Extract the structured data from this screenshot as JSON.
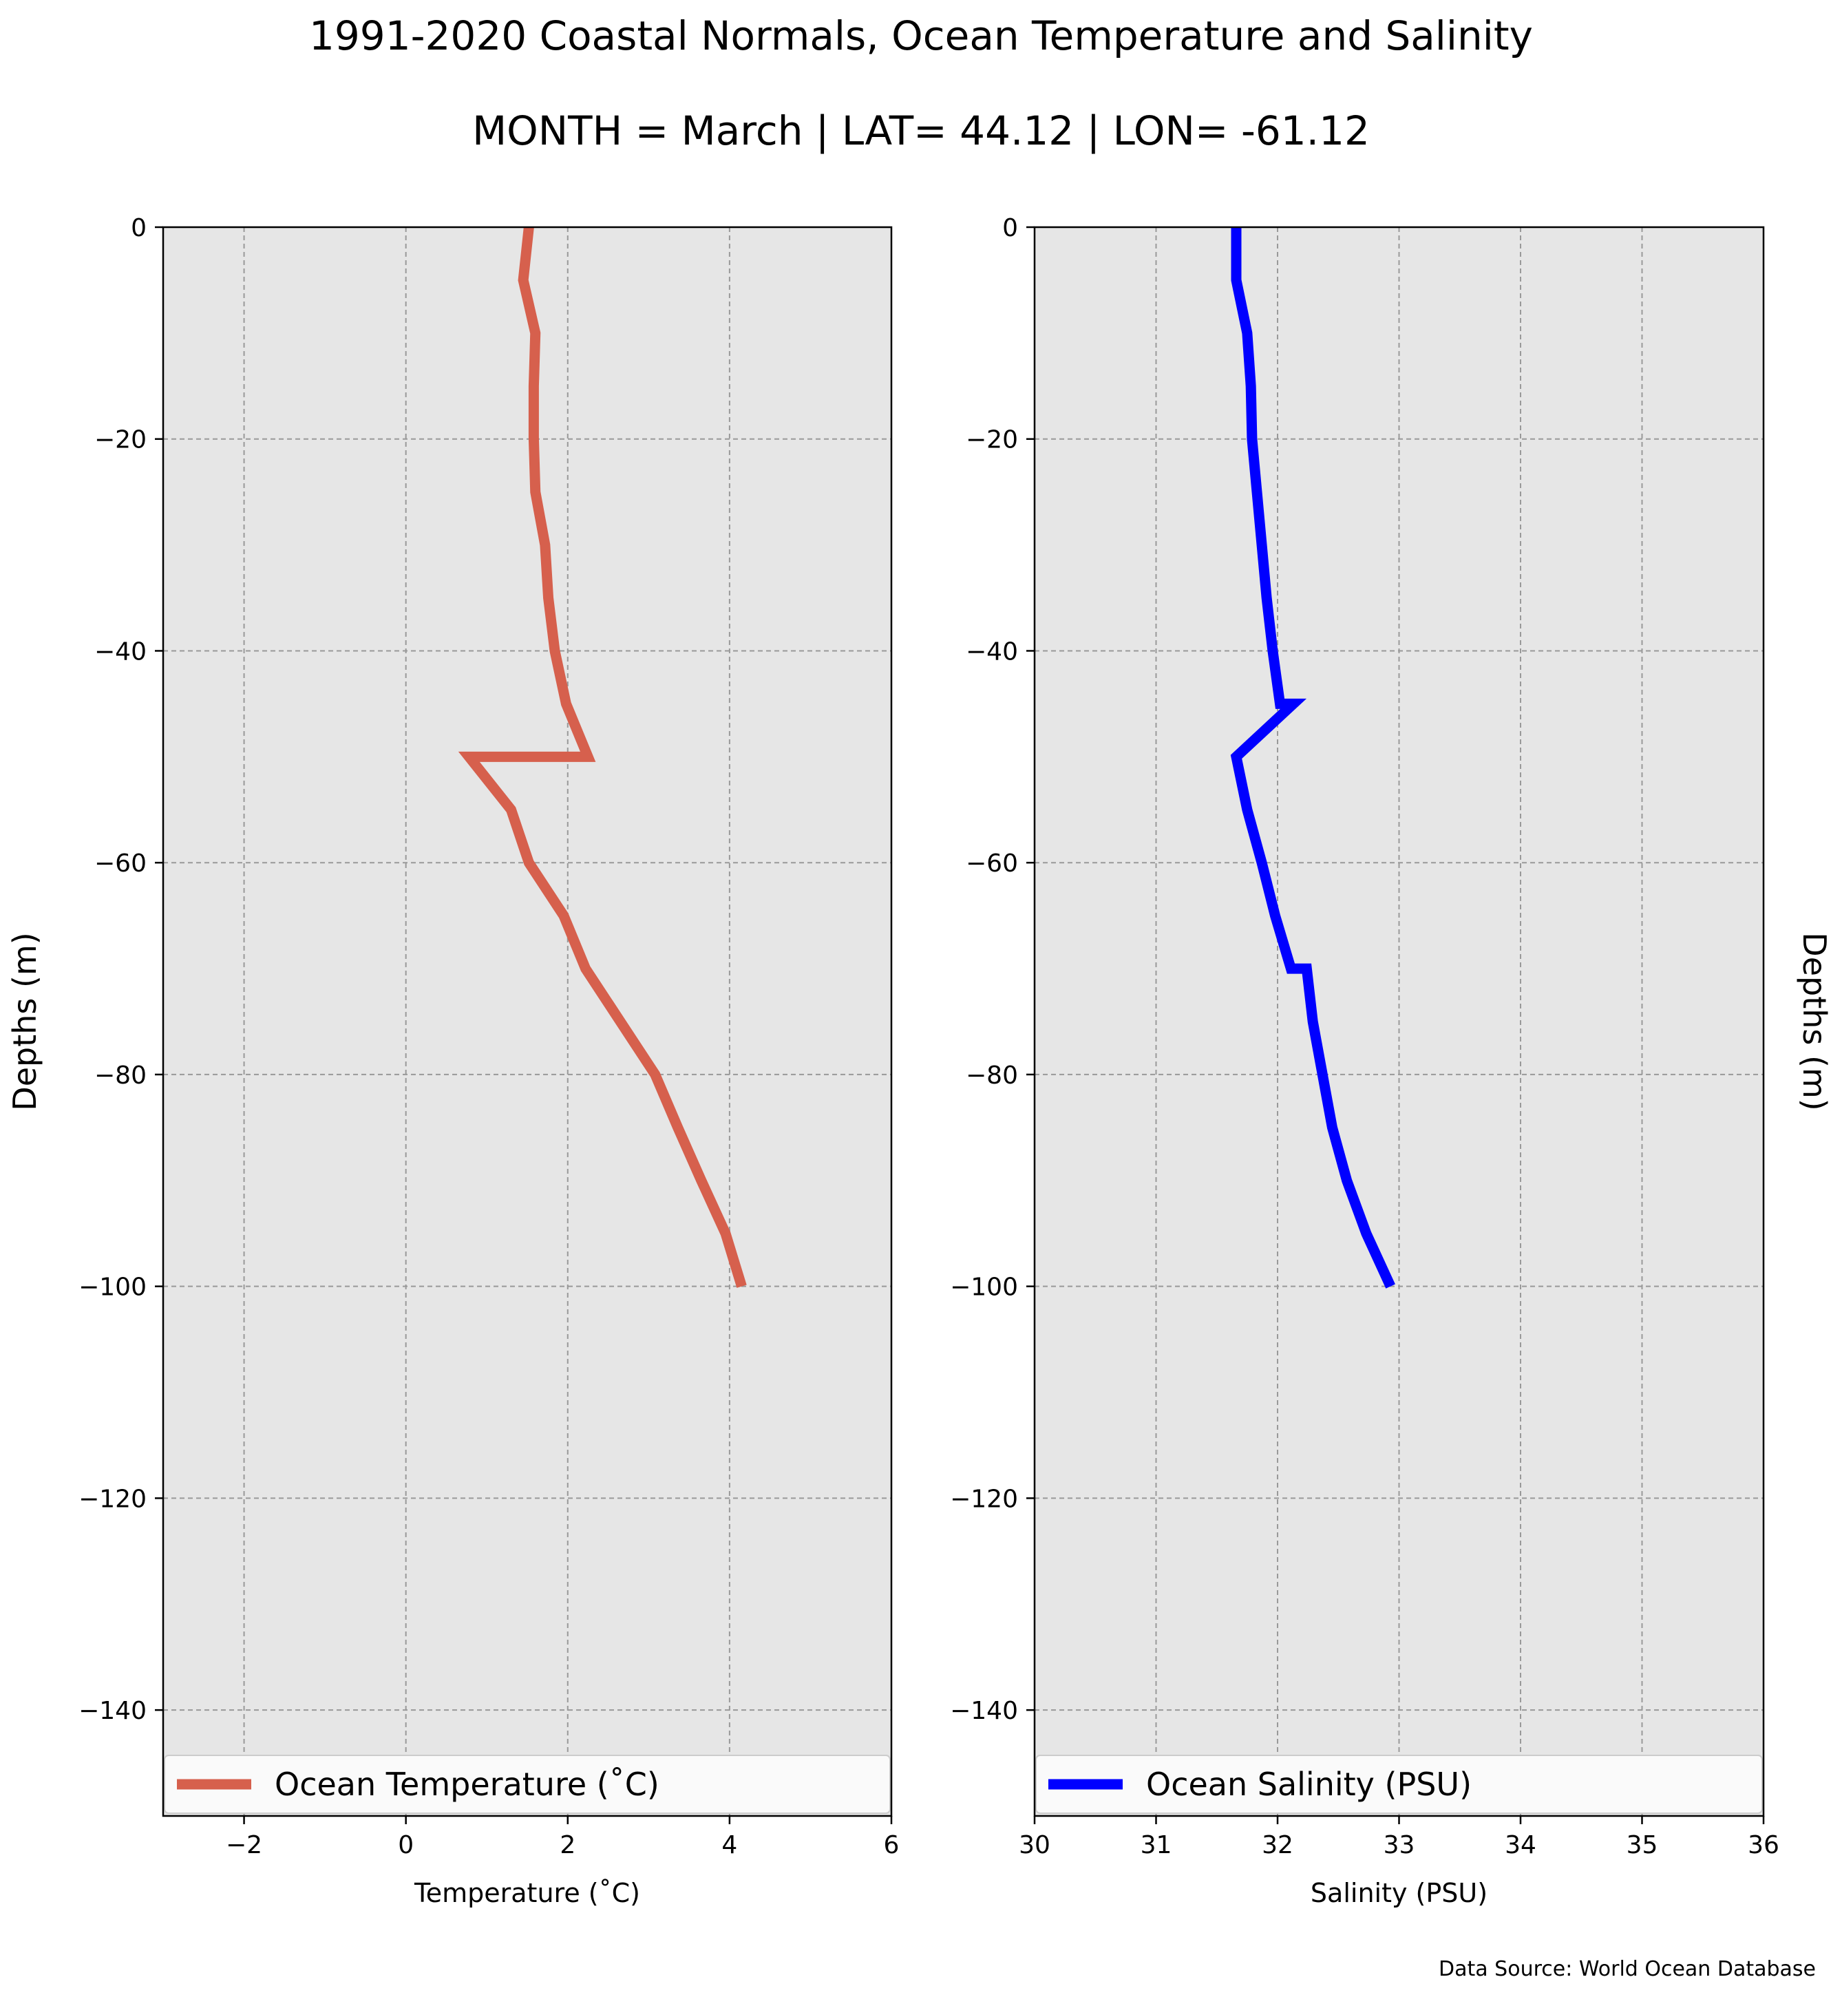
{
  "figure": {
    "title": "1991-2020 Coastal Normals, Ocean Temperature and Salinity",
    "subtitle": "MONTH = March | LAT= 44.12 | LON= -61.12",
    "source_note": "Data Source: World Ocean Database"
  },
  "chart_data": [
    {
      "type": "line",
      "orientation": "vertical-profile",
      "xlabel": "Temperature ($^\\circ$C)",
      "ylabel": "Depths (m)",
      "xlim": [
        -3,
        6
      ],
      "ylim": [
        -150,
        0
      ],
      "xticks": [
        -2,
        0,
        2,
        4,
        6
      ],
      "yticks": [
        0,
        -20,
        -40,
        -60,
        -80,
        -100,
        -120,
        -140
      ],
      "grid": true,
      "legend_position": "bottom",
      "background": "#e6e6e6",
      "series": [
        {
          "name": "Ocean Temperature ($^\\circ$C)",
          "color": "#d6604d",
          "x": [
            1.52,
            1.45,
            1.6,
            1.58,
            1.58,
            1.6,
            1.72,
            1.76,
            1.84,
            1.98,
            2.25,
            0.78,
            1.3,
            1.52,
            1.95,
            2.22,
            2.65,
            3.08,
            3.36,
            3.65,
            3.95,
            4.15
          ],
          "y": [
            0,
            -5,
            -10,
            -15,
            -20,
            -25,
            -30,
            -35,
            -40,
            -45,
            -50,
            -50,
            -55,
            -60,
            -65,
            -70,
            -75,
            -80,
            -85,
            -90,
            -95,
            -100
          ]
        }
      ]
    },
    {
      "type": "line",
      "orientation": "vertical-profile",
      "xlabel": "Salinity (PSU)",
      "ylabel": "Depths (m)",
      "xlim": [
        30,
        36
      ],
      "ylim": [
        -150,
        0
      ],
      "xticks": [
        30,
        31,
        32,
        33,
        34,
        35,
        36
      ],
      "yticks": [
        0,
        -20,
        -40,
        -60,
        -80,
        -100,
        -120,
        -140
      ],
      "grid": true,
      "legend_position": "bottom",
      "background": "#e6e6e6",
      "series": [
        {
          "name": "Ocean Salinity (PSU)",
          "color": "#0000ff",
          "x": [
            31.66,
            31.66,
            31.75,
            31.78,
            31.79,
            31.83,
            31.87,
            31.91,
            31.96,
            32.02,
            32.13,
            31.66,
            31.75,
            31.87,
            31.98,
            32.11,
            32.24,
            32.29,
            32.37,
            32.45,
            32.57,
            32.73,
            32.93
          ],
          "y": [
            0,
            -5,
            -10,
            -15,
            -20,
            -25,
            -30,
            -35,
            -40,
            -45,
            -45,
            -50,
            -55,
            -60,
            -65,
            -70,
            -70,
            -75,
            -80,
            -85,
            -90,
            -95,
            -100
          ]
        }
      ]
    }
  ]
}
